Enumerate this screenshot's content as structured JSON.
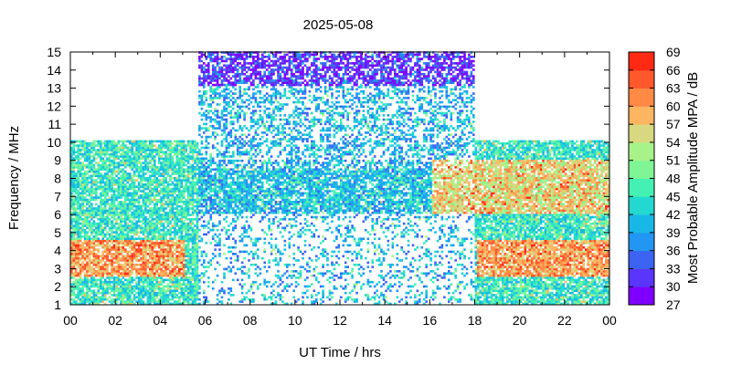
{
  "chart_data": {
    "type": "heatmap",
    "title": "2025-05-08",
    "xlabel": "UT Time / hrs",
    "ylabel": "Frequency / MHz",
    "colorbar_label": "Most Probable Amplitude MPA / dB",
    "xlim": [
      0,
      24
    ],
    "ylim": [
      1,
      15
    ],
    "x_ticks": [
      "00",
      "02",
      "04",
      "06",
      "08",
      "10",
      "12",
      "14",
      "16",
      "18",
      "20",
      "22",
      "00"
    ],
    "y_ticks": [
      "1",
      "2",
      "3",
      "4",
      "5",
      "6",
      "7",
      "8",
      "9",
      "10",
      "11",
      "12",
      "13",
      "14",
      "15"
    ],
    "colorbar_ticks": [
      "27",
      "30",
      "33",
      "36",
      "39",
      "42",
      "45",
      "48",
      "51",
      "54",
      "57",
      "60",
      "63",
      "66",
      "69"
    ],
    "colorbar_range": [
      27,
      69
    ],
    "colorbar_colors": [
      "#7f00ff",
      "#5a35fb",
      "#3d63f3",
      "#2196f3",
      "#18b8e6",
      "#22d8d0",
      "#44f0b3",
      "#7ff596",
      "#a7f38a",
      "#d7d880",
      "#fcb661",
      "#ff8a45",
      "#ff582c",
      "#ff2a13"
    ],
    "grid": false,
    "coverage": {
      "full_band_hours": [
        5.6,
        17.9
      ],
      "full_band_max_mhz": 15,
      "night_max_mhz": 10
    },
    "regions": [
      {
        "hours": [
          0,
          5.6
        ],
        "mhz": [
          1,
          10
        ],
        "typical_db": 45
      },
      {
        "hours": [
          5.6,
          17.9
        ],
        "mhz": [
          1,
          15
        ],
        "typical_db": 40
      },
      {
        "hours": [
          17.9,
          24
        ],
        "mhz": [
          1,
          10
        ],
        "typical_db": 45
      },
      {
        "hours": [
          6.5,
          16
        ],
        "mhz": [
          6,
          8.5
        ],
        "typical_db": 41
      },
      {
        "hours": [
          16,
          24
        ],
        "mhz": [
          6,
          9
        ],
        "typical_db": 56
      },
      {
        "hours": [
          0,
          5
        ],
        "mhz": [
          2.5,
          4.5
        ],
        "typical_db": 60
      },
      {
        "hours": [
          18,
          24
        ],
        "mhz": [
          2.5,
          4.5
        ],
        "typical_db": 60
      },
      {
        "hours": [
          5.6,
          17.9
        ],
        "mhz": [
          13,
          15
        ],
        "typical_db": 31
      }
    ]
  }
}
